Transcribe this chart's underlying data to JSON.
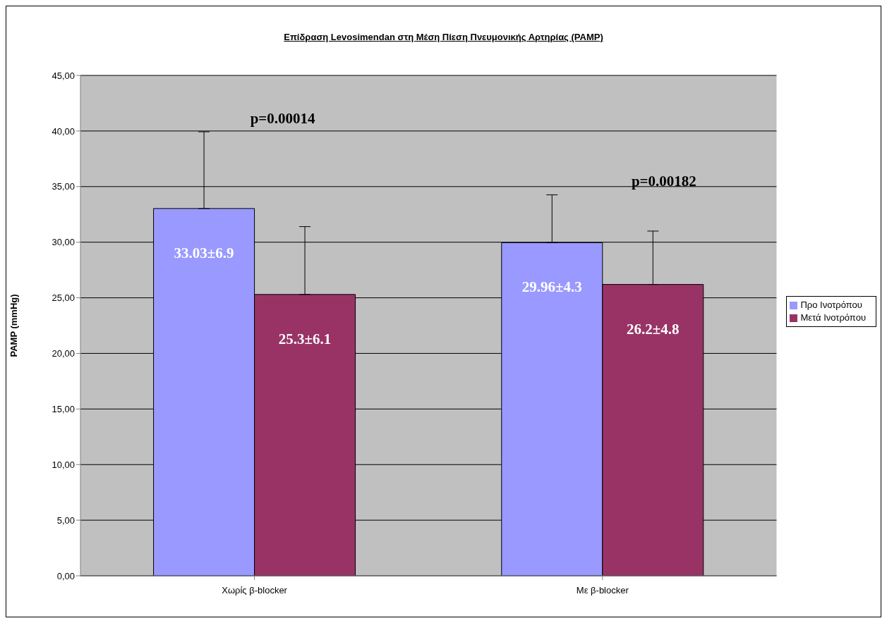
{
  "chart_data": {
    "type": "bar",
    "title": "Επίδραση Levosimendan στη Μέση Πίεση Πνευμονικής Αρτηρίας (PAMP)",
    "ylabel": "PAMP (mmHg)",
    "categories": [
      "Χωρίς β-blocker",
      "Με β-blocker"
    ],
    "series": [
      {
        "name": "Προ Ινοτρόπου",
        "color": "#9999ff",
        "values": [
          33.03,
          29.96
        ],
        "errors": [
          [
            33.03,
            39.93
          ],
          [
            29.96,
            34.26
          ]
        ],
        "value_labels": [
          "33.03±6.9",
          "29.96±4.3"
        ]
      },
      {
        "name": "Μετά Ινοτρόπου",
        "color": "#993366",
        "values": [
          25.3,
          26.2
        ],
        "errors": [
          [
            25.3,
            31.4
          ],
          [
            26.2,
            31.0
          ]
        ],
        "value_labels": [
          "25.3±6.1",
          "26.2±4.8"
        ]
      }
    ],
    "ylim": [
      0,
      45
    ],
    "yticks": [
      {
        "value": 0,
        "label": "0,00"
      },
      {
        "value": 5,
        "label": "5,00"
      },
      {
        "value": 10,
        "label": "10,00"
      },
      {
        "value": 15,
        "label": "15,00"
      },
      {
        "value": 20,
        "label": "20,00"
      },
      {
        "value": 25,
        "label": "25,00"
      },
      {
        "value": 30,
        "label": "30,00"
      },
      {
        "value": 35,
        "label": "35,00"
      },
      {
        "value": 40,
        "label": "40,00"
      },
      {
        "value": 45,
        "label": "45,00"
      }
    ],
    "annotations": [
      "p=0.00014",
      "p=0.00182"
    ],
    "grid": "y",
    "legend": "right"
  }
}
